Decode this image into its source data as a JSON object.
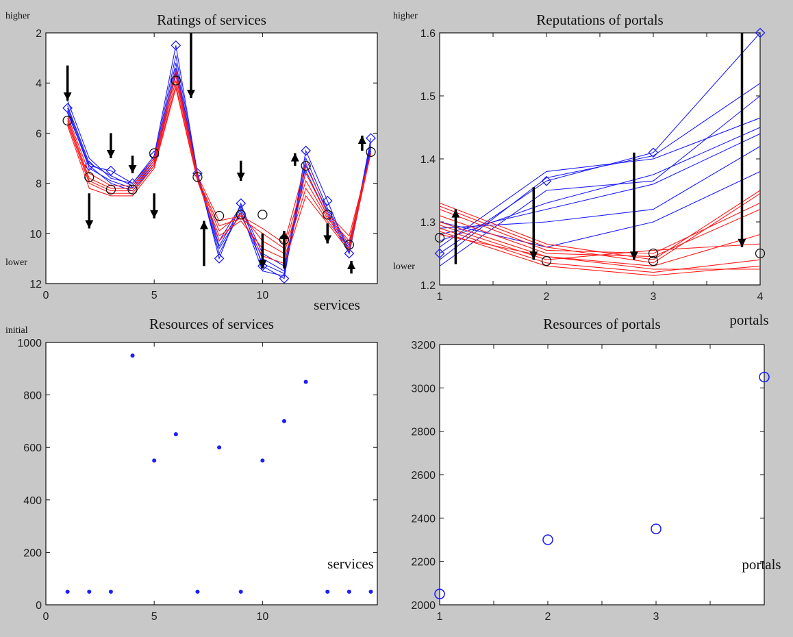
{
  "chart_data": [
    {
      "id": "ratings",
      "type": "line",
      "title": "Ratings of services",
      "xlabel": "services",
      "ylabel": "",
      "corner_top": "higher",
      "corner_bottom": "lower",
      "xlim": [
        0,
        15.3
      ],
      "ylim": [
        2,
        12
      ],
      "y_reversed": true,
      "xticks": [
        0,
        5,
        10
      ],
      "yticks": [
        2,
        4,
        6,
        8,
        10,
        12
      ],
      "grid": false,
      "x": [
        1,
        2,
        3,
        4,
        5,
        6,
        7,
        8,
        9,
        10,
        11,
        12,
        13,
        14,
        15
      ],
      "series": [
        {
          "color": "#1d1dff",
          "marker": "diamond",
          "marker_last_only": true,
          "values": [
            5.0,
            7.3,
            7.5,
            8.0,
            6.9,
            2.5,
            7.6,
            11.0,
            8.8,
            11.3,
            11.8,
            6.7,
            8.7,
            10.8,
            6.2
          ]
        },
        {
          "color": "#1d1dff",
          "values": [
            4.7,
            7.0,
            7.8,
            8.0,
            7.0,
            2.9,
            7.6,
            10.5,
            9.0,
            11.0,
            11.5,
            7.0,
            9.0,
            10.5,
            6.4
          ]
        },
        {
          "color": "#1d1dff",
          "values": [
            4.9,
            7.2,
            7.7,
            8.1,
            7.1,
            3.2,
            7.7,
            10.8,
            9.1,
            11.5,
            11.7,
            7.2,
            9.2,
            10.7,
            6.5
          ]
        },
        {
          "color": "#1d1dff",
          "values": [
            5.1,
            7.4,
            7.9,
            8.2,
            7.2,
            3.4,
            7.7,
            10.3,
            8.9,
            10.8,
            11.3,
            7.3,
            9.1,
            10.6,
            6.6
          ]
        },
        {
          "color": "#1d1dff",
          "values": [
            5.2,
            7.3,
            8.0,
            8.3,
            7.3,
            3.6,
            7.8,
            10.6,
            9.2,
            11.2,
            11.6,
            7.5,
            9.3,
            10.8,
            6.7
          ]
        },
        {
          "color": "#ff1a1a",
          "values": [
            5.3,
            7.6,
            8.1,
            8.1,
            7.0,
            3.5,
            7.7,
            9.5,
            9.3,
            9.8,
            10.4,
            7.2,
            9.2,
            10.1,
            6.8
          ]
        },
        {
          "color": "#ff1a1a",
          "values": [
            5.4,
            7.8,
            8.2,
            8.2,
            7.1,
            3.7,
            7.8,
            9.7,
            9.4,
            10.0,
            10.6,
            7.6,
            9.3,
            10.3,
            6.8
          ]
        },
        {
          "color": "#ff1a1a",
          "values": [
            5.5,
            7.9,
            8.3,
            8.3,
            7.2,
            3.9,
            7.8,
            9.9,
            9.2,
            10.3,
            10.8,
            7.9,
            9.4,
            10.4,
            6.8
          ]
        },
        {
          "color": "#ff1a1a",
          "values": [
            5.6,
            8.0,
            8.4,
            8.4,
            7.3,
            4.1,
            7.9,
            10.1,
            9.5,
            10.6,
            11.0,
            8.2,
            9.5,
            10.6,
            6.8
          ]
        },
        {
          "color": "#ff1a1a",
          "values": [
            5.7,
            8.2,
            8.5,
            8.5,
            7.4,
            4.2,
            7.9,
            10.3,
            9.3,
            10.9,
            11.2,
            8.5,
            9.6,
            10.7,
            6.8
          ]
        }
      ],
      "initial_markers": {
        "color": "#111111",
        "marker": "circle",
        "values": [
          5.5,
          7.75,
          8.25,
          8.25,
          6.8,
          3.9,
          7.75,
          9.3,
          9.25,
          9.25,
          10.25,
          7.3,
          9.25,
          10.45,
          6.75
        ]
      },
      "arrows": [
        {
          "x": 1,
          "from": 3.3,
          "to": 4.7
        },
        {
          "x": 2,
          "from": 8.4,
          "to": 9.8
        },
        {
          "x": 3,
          "from": 6.0,
          "to": 7.0
        },
        {
          "x": 4,
          "from": 6.9,
          "to": 7.6
        },
        {
          "x": 5,
          "from": 8.4,
          "to": 9.4
        },
        {
          "x": 6.7,
          "from": 2.0,
          "to": 4.6
        },
        {
          "x": 7.3,
          "from": 11.3,
          "to": 9.5
        },
        {
          "x": 9,
          "from": 7.1,
          "to": 7.9
        },
        {
          "x": 10,
          "from": 10.0,
          "to": 11.4
        },
        {
          "x": 11,
          "from": 11.4,
          "to": 9.9
        },
        {
          "x": 11.5,
          "from": 7.3,
          "to": 6.8
        },
        {
          "x": 13,
          "from": 9.6,
          "to": 10.4
        },
        {
          "x": 14.1,
          "from": 11.6,
          "to": 11.1
        },
        {
          "x": 14.6,
          "from": 6.7,
          "to": 6.1
        }
      ]
    },
    {
      "id": "reputations",
      "type": "line",
      "title": "Reputations of portals",
      "xlabel": "portals",
      "corner_top": "higher",
      "corner_bottom": "lower",
      "xlim": [
        1,
        4
      ],
      "ylim": [
        1.2,
        1.6
      ],
      "xticks": [
        1,
        2,
        3,
        4
      ],
      "yticks": [
        "1.2",
        "1.3",
        "1.4",
        "1.5",
        "1.6"
      ],
      "grid": false,
      "x": [
        1,
        2,
        3,
        4
      ],
      "series": [
        {
          "color": "#1d1dff",
          "values": [
            1.25,
            1.365,
            1.41,
            1.6
          ],
          "marker": "diamond"
        },
        {
          "color": "#1d1dff",
          "values": [
            1.24,
            1.37,
            1.405,
            1.52
          ]
        },
        {
          "color": "#1d1dff",
          "values": [
            1.23,
            1.35,
            1.365,
            1.5
          ]
        },
        {
          "color": "#1d1dff",
          "values": [
            1.26,
            1.38,
            1.4,
            1.465
          ]
        },
        {
          "color": "#1d1dff",
          "values": [
            1.27,
            1.33,
            1.375,
            1.45
          ]
        },
        {
          "color": "#1d1dff",
          "values": [
            1.28,
            1.32,
            1.36,
            1.44
          ]
        },
        {
          "color": "#1d1dff",
          "values": [
            1.29,
            1.3,
            1.32,
            1.42
          ]
        },
        {
          "color": "#1d1dff",
          "values": [
            1.3,
            1.26,
            1.3,
            1.38
          ]
        },
        {
          "color": "#ff1a1a",
          "values": [
            1.33,
            1.265,
            1.24,
            1.35
          ]
        },
        {
          "color": "#ff1a1a",
          "values": [
            1.325,
            1.26,
            1.235,
            1.345
          ]
        },
        {
          "color": "#ff1a1a",
          "values": [
            1.32,
            1.255,
            1.25,
            1.33
          ]
        },
        {
          "color": "#ff1a1a",
          "values": [
            1.31,
            1.25,
            1.245,
            1.32
          ]
        },
        {
          "color": "#ff1a1a",
          "values": [
            1.3,
            1.245,
            1.23,
            1.28
          ]
        },
        {
          "color": "#ff1a1a",
          "values": [
            1.295,
            1.24,
            1.255,
            1.265
          ]
        },
        {
          "color": "#ff1a1a",
          "values": [
            1.29,
            1.235,
            1.22,
            1.24
          ]
        },
        {
          "color": "#ff1a1a",
          "values": [
            1.285,
            1.23,
            1.215,
            1.23
          ]
        },
        {
          "color": "#ff1a1a",
          "values": [
            1.28,
            1.245,
            1.225,
            1.225
          ]
        }
      ],
      "initial_markers": {
        "color": "#111111",
        "marker": "circle",
        "values": [
          1.275,
          1.238,
          1.25,
          1.25
        ],
        "x_extra": [
          3
        ],
        "values_extra": [
          1.238
        ]
      },
      "arrows": [
        {
          "x": 1.15,
          "from": 1.233,
          "to": 1.32
        },
        {
          "x": 1.88,
          "from": 1.355,
          "to": 1.24
        },
        {
          "x": 2.82,
          "from": 1.41,
          "to": 1.24
        },
        {
          "x": 3.83,
          "from": 1.6,
          "to": 1.26
        }
      ]
    },
    {
      "id": "service_resources",
      "type": "scatter",
      "title": "Resources of services",
      "xlabel": "services",
      "corner_top": "initial",
      "xlim": [
        0,
        15.3
      ],
      "ylim": [
        0,
        1000
      ],
      "xticks": [
        0,
        5,
        10
      ],
      "yticks": [
        0,
        200,
        400,
        600,
        800,
        1000
      ],
      "grid": false,
      "color": "#1d1dff",
      "marker": "dot",
      "x": [
        1,
        2,
        3,
        4,
        5,
        6,
        7,
        8,
        9,
        10,
        11,
        12,
        13,
        14,
        15
      ],
      "values": [
        50,
        50,
        50,
        950,
        550,
        650,
        50,
        600,
        50,
        550,
        700,
        850,
        50,
        50,
        50
      ]
    },
    {
      "id": "portal_resources",
      "type": "scatter",
      "title": "Resources of portals",
      "xlabel": "portals",
      "xlim": [
        1,
        4
      ],
      "ylim": [
        2000,
        3200
      ],
      "xticks": [
        1,
        2,
        3
      ],
      "yticks": [
        2000,
        2200,
        2400,
        2600,
        2800,
        3000,
        3200
      ],
      "grid": false,
      "color": "#1d1dff",
      "marker": "circle",
      "x": [
        1,
        2,
        3,
        4
      ],
      "values": [
        2050,
        2300,
        2350,
        3050
      ]
    }
  ]
}
